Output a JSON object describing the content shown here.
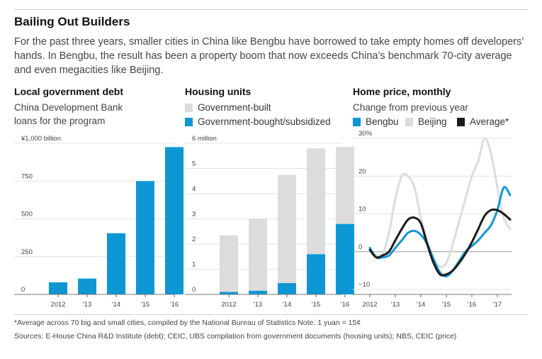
{
  "header": {
    "title": "Bailing Out Builders",
    "subtitle": "For the past three years, smaller cities in China like Bengbu have borrowed to take empty homes off developers’ hands. In Bengbu, the result has been a property boom that now exceeds China’s benchmark 70-city average and even megacities like Beijing."
  },
  "panels": {
    "debt": {
      "title": "Local government debt",
      "subtitle_1": "China Development Bank",
      "subtitle_2": "loans for the program"
    },
    "housing": {
      "title": "Housing units"
    },
    "price": {
      "title": "Home price, monthly",
      "subtitle": "Change from previous year"
    }
  },
  "colors": {
    "blue": "#0d97d5",
    "gray": "#dcdcdc",
    "black": "#1a1a1a",
    "grid": "#e3e3e3"
  },
  "footer": {
    "note": "*Average across 70 big and small cities, compiled by the National Bureau of Statistics   Note: 1 yuan = 15¢",
    "sources": "Sources: E-House China R&D Institute (debt); CEIC, UBS compilation from government documents (housing units); NBS, CEIC (price)"
  },
  "chart_data": [
    {
      "type": "bar",
      "title": "Local government debt",
      "subtitle": "China Development Bank loans for the program",
      "categories": [
        "2012",
        "'13",
        "'14",
        "'15",
        "'16"
      ],
      "series": [
        {
          "values": [
            80,
            105,
            405,
            750,
            975
          ]
        }
      ],
      "ylim": [
        0,
        1000
      ],
      "yticks": [
        0,
        250,
        500,
        750,
        1000
      ],
      "ytick_labels": [
        "0",
        "250",
        "500",
        "750",
        "¥1,000 billion"
      ],
      "grid": true
    },
    {
      "type": "bar",
      "stacked": true,
      "title": "Housing units",
      "categories": [
        "2012",
        "'13",
        "'14",
        "'15",
        "'16"
      ],
      "series": [
        {
          "name": "Government-bought/subsidized",
          "color": "#0d97d5",
          "values": [
            0.1,
            0.15,
            0.45,
            1.6,
            2.8
          ]
        },
        {
          "name": "Government-built",
          "color": "#dcdcdc",
          "values": [
            2.25,
            2.85,
            4.3,
            4.2,
            3.05
          ]
        }
      ],
      "ylim": [
        0,
        6
      ],
      "yticks": [
        0,
        1,
        2,
        3,
        4,
        5,
        6
      ],
      "ytick_labels": [
        "0",
        "1",
        "2",
        "3",
        "4",
        "5",
        "6 million"
      ],
      "grid": true
    },
    {
      "type": "line",
      "title": "Home price, monthly",
      "subtitle": "Change from previous year",
      "x": [
        2012.0,
        2012.25,
        2012.5,
        2012.75,
        2013.0,
        2013.25,
        2013.5,
        2013.75,
        2014.0,
        2014.25,
        2014.5,
        2014.75,
        2015.0,
        2015.25,
        2015.5,
        2015.75,
        2016.0,
        2016.25,
        2016.5,
        2016.75,
        2017.0,
        2017.25,
        2017.5
      ],
      "series": [
        {
          "name": "Bengbu",
          "color": "#0d97d5",
          "values": [
            1,
            -1.5,
            -1.5,
            -1,
            1,
            3,
            5,
            5.5,
            4.5,
            2,
            -2,
            -5.5,
            -6.5,
            -5,
            -2.5,
            0,
            1.5,
            3,
            5,
            7,
            11,
            17,
            15
          ]
        },
        {
          "name": "Beijing",
          "color": "#dcdcdc",
          "values": [
            0.5,
            -1,
            -0.5,
            5,
            14,
            20,
            20,
            17,
            9,
            3,
            -2,
            -4,
            -3,
            2,
            8,
            14,
            20,
            24,
            30,
            26,
            17,
            9,
            6
          ]
        },
        {
          "name": "Average*",
          "color": "#1a1a1a",
          "values": [
            0.5,
            -1.5,
            -1,
            0,
            3,
            6,
            8.5,
            9,
            7.5,
            2,
            -3,
            -6,
            -6,
            -5,
            -3,
            -0.5,
            2.5,
            6,
            9.5,
            11,
            11,
            10,
            8.5
          ]
        }
      ],
      "xticks": [
        "2012",
        "'13",
        "'14",
        "'15",
        "'16",
        "'17"
      ],
      "ylim": [
        -10,
        30
      ],
      "yticks": [
        -10,
        0,
        10,
        20,
        30
      ],
      "ytick_labels": [
        "−10",
        "0",
        "10",
        "20",
        "30%"
      ],
      "grid": true
    }
  ]
}
